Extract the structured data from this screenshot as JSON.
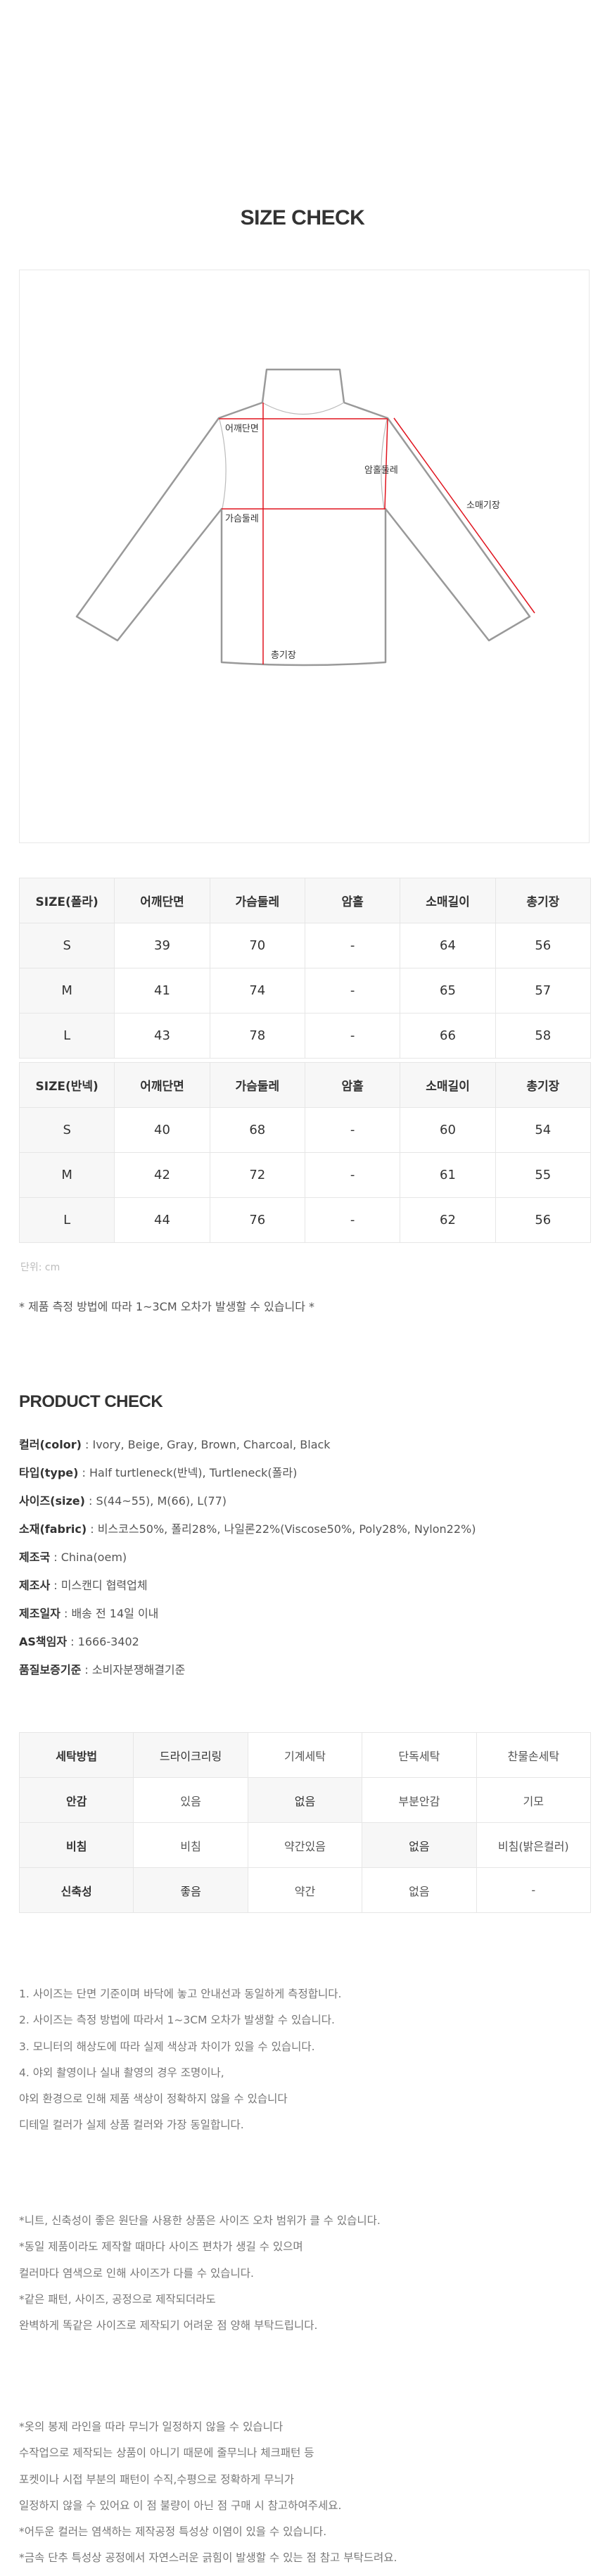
{
  "size_check": {
    "title": "SIZE CHECK",
    "diagram_labels": {
      "shoulder": "어깨단면",
      "armhole": "암홀둘레",
      "sleeve": "소매기장",
      "chest": "가슴둘레",
      "length": "총기장"
    },
    "colors": {
      "outline": "#999999",
      "measure_line": "#e0141e"
    },
    "tables": [
      {
        "headers": [
          "SIZE(폴라)",
          "어깨단면",
          "가슴둘레",
          "암홀",
          "소매길이",
          "총기장"
        ],
        "rows": [
          [
            "S",
            "39",
            "70",
            "-",
            "64",
            "56"
          ],
          [
            "M",
            "41",
            "74",
            "-",
            "65",
            "57"
          ],
          [
            "L",
            "43",
            "78",
            "-",
            "66",
            "58"
          ]
        ]
      },
      {
        "headers": [
          "SIZE(반넥)",
          "어깨단면",
          "가슴둘레",
          "암홀",
          "소매길이",
          "총기장"
        ],
        "rows": [
          [
            "S",
            "40",
            "68",
            "-",
            "60",
            "54"
          ],
          [
            "M",
            "42",
            "72",
            "-",
            "61",
            "55"
          ],
          [
            "L",
            "44",
            "76",
            "-",
            "62",
            "56"
          ]
        ]
      }
    ],
    "unit": "단위: cm",
    "note": "* 제품 측정 방법에 따라 1~3CM 오차가 발생할 수 있습니다 *"
  },
  "product_check": {
    "title": "PRODUCT CHECK",
    "items": [
      {
        "label": "컬러(color)",
        "value": " : Ivory, Beige, Gray, Brown, Charcoal, Black"
      },
      {
        "label": "타입(type)",
        "value": " : Half turtleneck(반넥), Turtleneck(폴라)"
      },
      {
        "label": "사이즈(size)",
        "value": " : S(44~55), M(66), L(77)"
      },
      {
        "label": "소재(fabric)",
        "value": " : 비스코스50%, 폴리28%, 나일론22%(Viscose50%, Poly28%, Nylon22%)"
      },
      {
        "label": "제조국",
        "value": " : China(oem)"
      },
      {
        "label": "제조사",
        "value": " : 미스캔디 협력업체"
      },
      {
        "label": "제조일자",
        "value": " : 배송 전 14일 이내"
      },
      {
        "label": "AS책임자",
        "value": " : 1666-3402"
      },
      {
        "label": "품질보증기준",
        "value": " : 소비자분쟁해결기준"
      }
    ]
  },
  "care_table": {
    "rows": [
      {
        "label": "세탁방법",
        "cells": [
          "드라이크리링",
          "기계세탁",
          "단독세탁",
          "찬물손세탁"
        ],
        "selected": 0
      },
      {
        "label": "안감",
        "cells": [
          "있음",
          "없음",
          "부분안감",
          "기모"
        ],
        "selected": 1
      },
      {
        "label": "비침",
        "cells": [
          "비침",
          "약간있음",
          "없음",
          "비침(밝은컬러)"
        ],
        "selected": 2
      },
      {
        "label": "신축성",
        "cells": [
          "좋음",
          "약간",
          "없음",
          "-"
        ],
        "selected": 0
      }
    ]
  },
  "notes": [
    [
      "1. 사이즈는 단면 기준이며 바닥에 놓고 안내선과 동일하게 측정합니다.",
      "2. 사이즈는 측정 방법에 따라서 1~3CM 오차가 발생할 수 있습니다.",
      "3. 모니터의 해상도에 따라 실제 색상과 차이가 있을 수 있습니다.",
      "4. 야외 촬영이나 실내 촬영의 경우 조명이나,",
      "야외 환경으로 인해 제품 색상이 정확하지 않을 수 있습니다",
      "디테일 컬러가 실제 상품 컬러와 가장 동일합니다."
    ],
    [
      "*니트, 신축성이 좋은 원단을 사용한 상품은 사이즈 오차 범위가 클 수 있습니다.",
      "*동일 제품이라도 제작할 때마다 사이즈 편차가 생길 수 있으며",
      "컬러마다 염색으로 인해 사이즈가 다를 수 있습니다.",
      "*같은 패턴, 사이즈, 공정으로 제작되더라도",
      "완벽하게 똑같은 사이즈로 제작되기 어려운 점 양해 부탁드립니다."
    ],
    [
      "*옷의 봉제 라인을 따라 무늬가 일정하지 않을 수 있습니다",
      "수작업으로 제작되는 상품이 아니기 때문에 줄무늬나 체크패턴 등",
      "포켓이나 시접 부분의 패턴이 수직,수평으로 정확하게 무늬가",
      "일정하지 않을 수 있어요 이 점 불량이 아닌 점 구매 시 참고하여주세요.",
      "*어두운 컬러는 염색하는 제작공정 특성상 이염이 있을 수 있습니다.",
      "*금속 단추 특성상 공정에서 자연스러운 긁힘이 발생할 수 있는 점 참고 부탁드려요."
    ]
  ]
}
